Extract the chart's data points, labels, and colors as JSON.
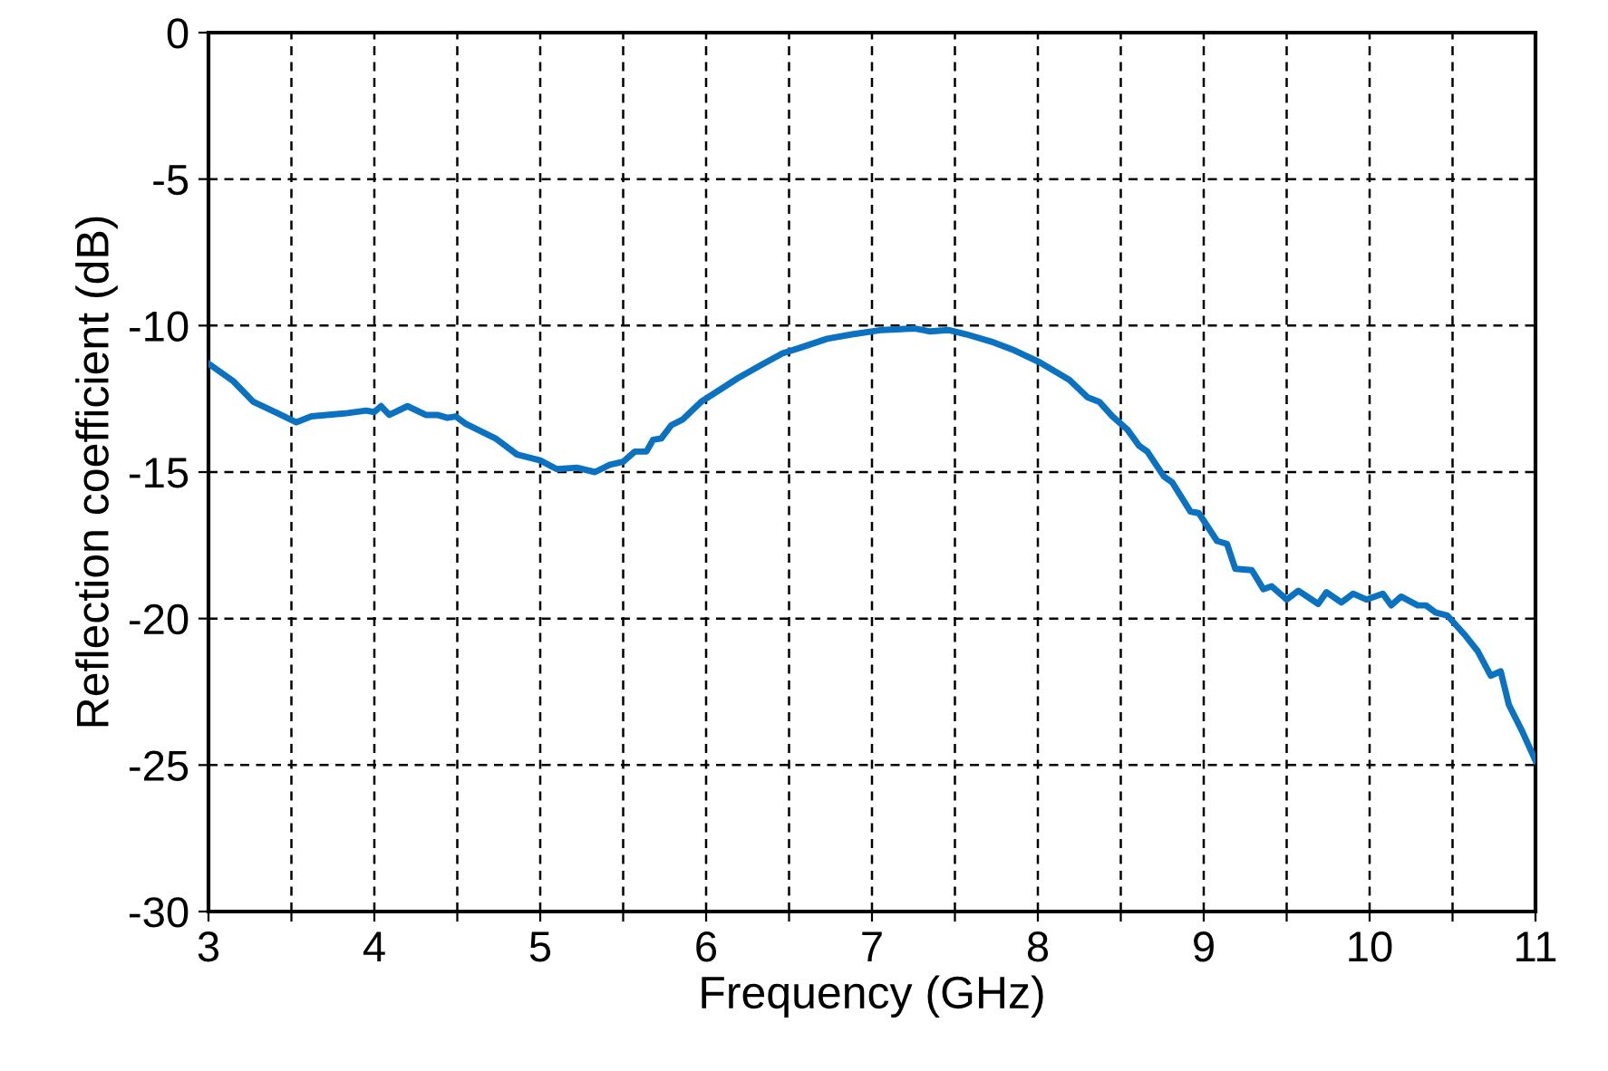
{
  "chart_data": {
    "type": "line",
    "xlabel": "Frequency (GHz)",
    "ylabel": "Reflection coefficient (dB)",
    "xlim": [
      3,
      11
    ],
    "ylim": [
      -30,
      0
    ],
    "xticks": [
      3,
      {
        "value": 3.5,
        "label": null
      },
      4,
      {
        "value": 4.5,
        "label": null
      },
      5,
      {
        "value": 5.5,
        "label": null
      },
      6,
      {
        "value": 6.5,
        "label": null
      },
      7,
      {
        "value": 7.5,
        "label": null
      },
      8,
      {
        "value": 8.5,
        "label": null
      },
      9,
      {
        "value": 9.5,
        "label": null
      },
      10,
      {
        "value": 10.5,
        "label": null
      },
      11
    ],
    "yticks": [
      -30,
      -25,
      -20,
      -15,
      -10,
      -5,
      0
    ],
    "grid": true,
    "line_style": "solid",
    "marker": "none",
    "series": [
      {
        "color": "#0a72c0",
        "x": [
          3.0,
          3.15,
          3.27,
          3.42,
          3.53,
          3.62,
          3.82,
          3.95,
          4.0,
          4.04,
          4.09,
          4.2,
          4.31,
          4.38,
          4.44,
          4.49,
          4.55,
          4.73,
          4.86,
          5.0,
          5.1,
          5.22,
          5.33,
          5.42,
          5.5,
          5.57,
          5.64,
          5.68,
          5.73,
          5.79,
          5.86,
          5.97,
          6.08,
          6.19,
          6.33,
          6.46,
          6.57,
          6.73,
          6.88,
          7.06,
          7.26,
          7.35,
          7.46,
          7.57,
          7.72,
          7.86,
          8.01,
          8.19,
          8.3,
          8.37,
          8.45,
          8.54,
          8.61,
          8.66,
          8.76,
          8.81,
          8.92,
          8.97,
          9.08,
          9.14,
          9.19,
          9.29,
          9.36,
          9.41,
          9.5,
          9.57,
          9.69,
          9.74,
          9.83,
          9.9,
          9.98,
          10.08,
          10.13,
          10.19,
          10.29,
          10.34,
          10.4,
          10.47,
          10.58,
          10.65,
          10.73,
          10.79,
          10.84,
          10.92,
          11.0
        ],
        "values": [
          -11.3,
          -11.9,
          -12.6,
          -13.0,
          -13.3,
          -13.1,
          -13.0,
          -12.9,
          -12.95,
          -12.75,
          -13.05,
          -12.75,
          -13.05,
          -13.05,
          -13.15,
          -13.1,
          -13.35,
          -13.85,
          -14.4,
          -14.6,
          -14.9,
          -14.85,
          -15.0,
          -14.75,
          -14.65,
          -14.3,
          -14.3,
          -13.9,
          -13.85,
          -13.4,
          -13.2,
          -12.6,
          -12.2,
          -11.8,
          -11.35,
          -10.95,
          -10.75,
          -10.45,
          -10.3,
          -10.15,
          -10.1,
          -10.2,
          -10.15,
          -10.3,
          -10.55,
          -10.85,
          -11.25,
          -11.85,
          -12.45,
          -12.6,
          -13.1,
          -13.55,
          -14.1,
          -14.3,
          -15.15,
          -15.35,
          -16.35,
          -16.4,
          -17.35,
          -17.45,
          -18.3,
          -18.35,
          -19.0,
          -18.9,
          -19.35,
          -19.05,
          -19.5,
          -19.1,
          -19.45,
          -19.15,
          -19.35,
          -19.15,
          -19.55,
          -19.25,
          -19.55,
          -19.55,
          -19.8,
          -19.9,
          -20.6,
          -21.1,
          -21.95,
          -21.8,
          -22.95,
          -23.85,
          -24.85
        ]
      }
    ]
  }
}
